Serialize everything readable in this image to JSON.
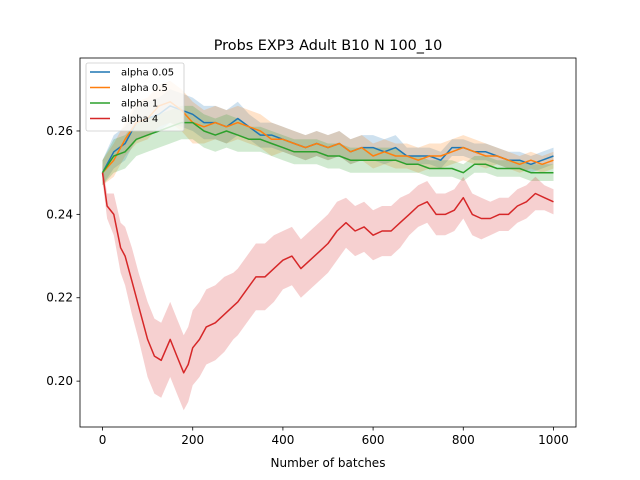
{
  "chart_data": {
    "type": "line",
    "title": "Probs EXP3 Adult B10 N 100_10",
    "xlabel": "Number of batches",
    "ylabel": "",
    "xlim": [
      -50,
      1050
    ],
    "ylim": [
      0.189,
      0.2775
    ],
    "xticks": [
      0,
      200,
      400,
      600,
      800,
      1000
    ],
    "xtick_labels": [
      "0",
      "200",
      "400",
      "600",
      "800",
      "1000"
    ],
    "yticks": [
      0.2,
      0.22,
      0.24,
      0.26
    ],
    "ytick_labels": [
      "0.20",
      "0.22",
      "0.24",
      "0.26"
    ],
    "grid": false,
    "legend_position": "top-left",
    "series": [
      {
        "name": "alpha 0.05",
        "color": "#1f77b4",
        "x": [
          0,
          25,
          50,
          75,
          100,
          125,
          150,
          175,
          200,
          225,
          250,
          275,
          300,
          325,
          350,
          375,
          400,
          425,
          450,
          475,
          500,
          525,
          550,
          575,
          600,
          625,
          650,
          675,
          700,
          725,
          750,
          775,
          800,
          825,
          850,
          875,
          900,
          925,
          950,
          975,
          1000
        ],
        "y": [
          0.25,
          0.255,
          0.257,
          0.262,
          0.263,
          0.264,
          0.266,
          0.265,
          0.264,
          0.262,
          0.262,
          0.261,
          0.263,
          0.261,
          0.259,
          0.259,
          0.258,
          0.257,
          0.256,
          0.257,
          0.256,
          0.257,
          0.255,
          0.256,
          0.256,
          0.255,
          0.256,
          0.254,
          0.254,
          0.254,
          0.253,
          0.256,
          0.256,
          0.255,
          0.255,
          0.254,
          0.253,
          0.253,
          0.252,
          0.253,
          0.254
        ],
        "band": [
          0.003,
          0.004,
          0.004,
          0.004,
          0.004,
          0.004,
          0.004,
          0.004,
          0.004,
          0.004,
          0.004,
          0.004,
          0.004,
          0.003,
          0.003,
          0.003,
          0.003,
          0.003,
          0.003,
          0.003,
          0.003,
          0.003,
          0.003,
          0.003,
          0.003,
          0.003,
          0.003,
          0.002,
          0.002,
          0.002,
          0.002,
          0.002,
          0.002,
          0.002,
          0.002,
          0.002,
          0.002,
          0.002,
          0.002,
          0.002,
          0.002
        ]
      },
      {
        "name": "alpha 0.5",
        "color": "#ff7f0e",
        "x": [
          0,
          25,
          50,
          75,
          100,
          125,
          150,
          175,
          200,
          225,
          250,
          275,
          300,
          325,
          350,
          375,
          400,
          425,
          450,
          475,
          500,
          525,
          550,
          575,
          600,
          625,
          650,
          675,
          700,
          725,
          750,
          775,
          800,
          825,
          850,
          875,
          900,
          925,
          950,
          975,
          1000
        ],
        "y": [
          0.25,
          0.253,
          0.258,
          0.262,
          0.263,
          0.266,
          0.267,
          0.265,
          0.262,
          0.261,
          0.262,
          0.261,
          0.262,
          0.261,
          0.26,
          0.258,
          0.258,
          0.257,
          0.256,
          0.257,
          0.256,
          0.257,
          0.255,
          0.256,
          0.254,
          0.255,
          0.254,
          0.254,
          0.253,
          0.254,
          0.254,
          0.255,
          0.256,
          0.255,
          0.254,
          0.254,
          0.253,
          0.252,
          0.253,
          0.252,
          0.253
        ],
        "band": [
          0.003,
          0.004,
          0.004,
          0.005,
          0.005,
          0.005,
          0.005,
          0.005,
          0.005,
          0.004,
          0.004,
          0.004,
          0.004,
          0.004,
          0.004,
          0.004,
          0.003,
          0.003,
          0.003,
          0.003,
          0.003,
          0.003,
          0.003,
          0.003,
          0.003,
          0.003,
          0.003,
          0.003,
          0.003,
          0.003,
          0.003,
          0.003,
          0.003,
          0.003,
          0.003,
          0.002,
          0.002,
          0.002,
          0.002,
          0.002,
          0.002
        ]
      },
      {
        "name": "alpha 1",
        "color": "#2ca02c",
        "x": [
          0,
          25,
          50,
          75,
          100,
          125,
          150,
          175,
          200,
          225,
          250,
          275,
          300,
          325,
          350,
          375,
          400,
          425,
          450,
          475,
          500,
          525,
          550,
          575,
          600,
          625,
          650,
          675,
          700,
          725,
          750,
          775,
          800,
          825,
          850,
          875,
          900,
          925,
          950,
          975,
          1000
        ],
        "y": [
          0.25,
          0.254,
          0.255,
          0.258,
          0.259,
          0.26,
          0.261,
          0.262,
          0.262,
          0.26,
          0.259,
          0.26,
          0.259,
          0.258,
          0.258,
          0.257,
          0.256,
          0.255,
          0.255,
          0.255,
          0.254,
          0.254,
          0.253,
          0.253,
          0.253,
          0.253,
          0.253,
          0.252,
          0.252,
          0.251,
          0.251,
          0.251,
          0.25,
          0.252,
          0.252,
          0.251,
          0.251,
          0.251,
          0.25,
          0.25,
          0.25
        ],
        "band": [
          0.003,
          0.004,
          0.004,
          0.004,
          0.004,
          0.004,
          0.004,
          0.004,
          0.004,
          0.004,
          0.004,
          0.004,
          0.004,
          0.003,
          0.003,
          0.003,
          0.003,
          0.003,
          0.003,
          0.003,
          0.003,
          0.003,
          0.003,
          0.003,
          0.003,
          0.003,
          0.003,
          0.002,
          0.002,
          0.002,
          0.002,
          0.002,
          0.002,
          0.002,
          0.002,
          0.002,
          0.002,
          0.002,
          0.002,
          0.002,
          0.002
        ]
      },
      {
        "name": "alpha 4",
        "color": "#d62728",
        "x": [
          0,
          10,
          25,
          40,
          50,
          65,
          80,
          100,
          115,
          130,
          150,
          165,
          180,
          190,
          200,
          215,
          230,
          250,
          270,
          290,
          300,
          320,
          340,
          360,
          380,
          400,
          420,
          440,
          460,
          480,
          500,
          520,
          540,
          560,
          580,
          600,
          620,
          640,
          660,
          680,
          700,
          720,
          740,
          760,
          780,
          800,
          820,
          840,
          860,
          880,
          900,
          920,
          940,
          960,
          980,
          1000
        ],
        "y": [
          0.25,
          0.242,
          0.24,
          0.232,
          0.23,
          0.224,
          0.218,
          0.21,
          0.206,
          0.205,
          0.21,
          0.206,
          0.202,
          0.204,
          0.208,
          0.21,
          0.213,
          0.214,
          0.216,
          0.218,
          0.219,
          0.222,
          0.225,
          0.225,
          0.227,
          0.229,
          0.23,
          0.227,
          0.229,
          0.231,
          0.233,
          0.236,
          0.238,
          0.236,
          0.237,
          0.235,
          0.236,
          0.236,
          0.238,
          0.24,
          0.242,
          0.243,
          0.24,
          0.24,
          0.241,
          0.244,
          0.24,
          0.239,
          0.239,
          0.24,
          0.24,
          0.242,
          0.243,
          0.245,
          0.244,
          0.243
        ],
        "band": [
          0.002,
          0.003,
          0.005,
          0.006,
          0.007,
          0.008,
          0.008,
          0.009,
          0.009,
          0.009,
          0.009,
          0.009,
          0.009,
          0.009,
          0.009,
          0.009,
          0.009,
          0.009,
          0.009,
          0.008,
          0.008,
          0.008,
          0.008,
          0.008,
          0.008,
          0.007,
          0.007,
          0.007,
          0.007,
          0.007,
          0.007,
          0.007,
          0.006,
          0.006,
          0.006,
          0.006,
          0.006,
          0.006,
          0.006,
          0.005,
          0.005,
          0.005,
          0.005,
          0.005,
          0.005,
          0.005,
          0.005,
          0.005,
          0.004,
          0.004,
          0.004,
          0.004,
          0.004,
          0.004,
          0.003,
          0.003
        ]
      }
    ]
  }
}
